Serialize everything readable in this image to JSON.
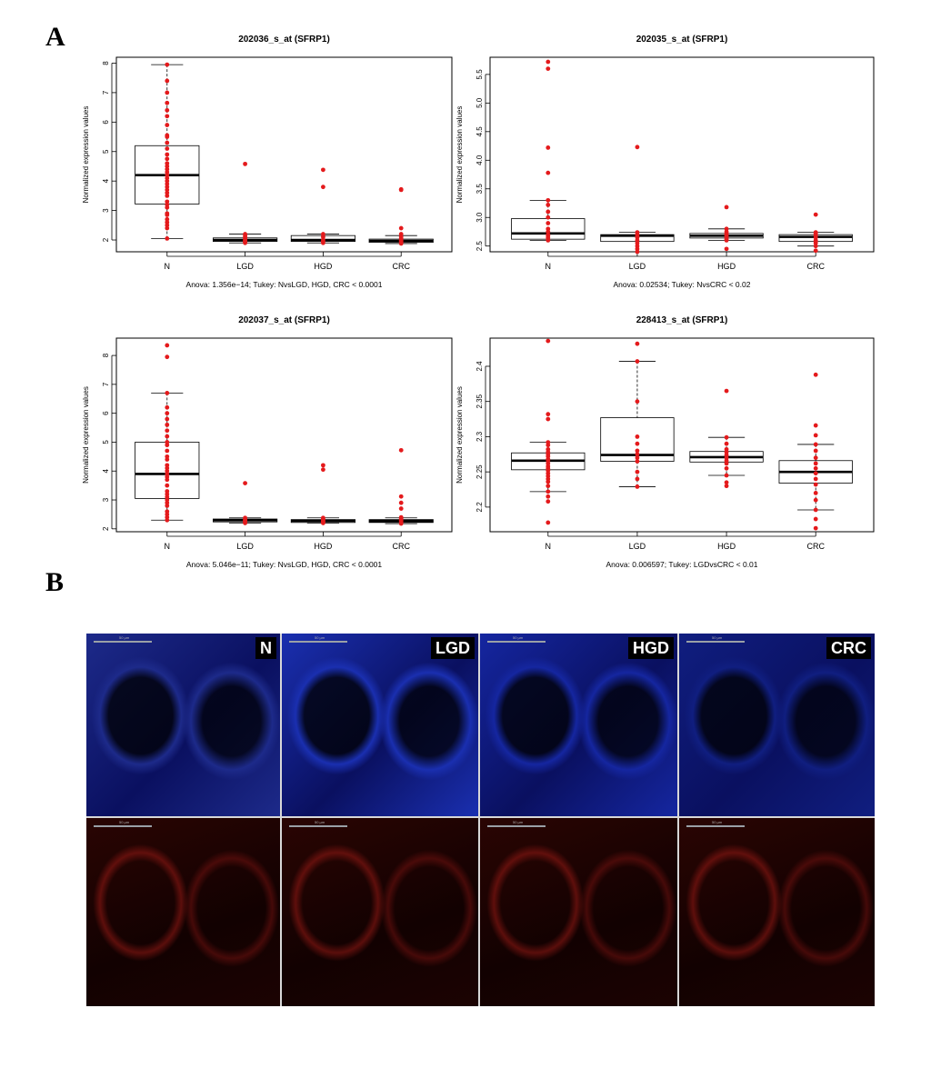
{
  "figure": {
    "panel_a_label": "A",
    "panel_b_label": "B"
  },
  "chart_data": [
    {
      "type": "box",
      "title": "202036_s_at (SFRP1)",
      "ylabel": "Normalized expression values",
      "xlabel": "",
      "caption": "Anova: 1.356e−14; Tukey: NvsLGD, HGD, CRC < 0.0001",
      "categories": [
        "N",
        "LGD",
        "HGD",
        "CRC"
      ],
      "ylim": [
        1.6,
        8.2
      ],
      "yticks": [
        2,
        3,
        4,
        5,
        6,
        7,
        8
      ],
      "grid": false,
      "boxes": [
        {
          "category": "N",
          "whisker_low": 2.05,
          "q1": 3.22,
          "median": 4.2,
          "q3": 5.2,
          "whisker_high": 7.95
        },
        {
          "category": "LGD",
          "whisker_low": 1.9,
          "q1": 1.95,
          "median": 2.0,
          "q3": 2.07,
          "whisker_high": 2.2
        },
        {
          "category": "HGD",
          "whisker_low": 1.9,
          "q1": 1.95,
          "median": 2.0,
          "q3": 2.15,
          "whisker_high": 2.2
        },
        {
          "category": "CRC",
          "whisker_low": 1.88,
          "q1": 1.92,
          "median": 1.97,
          "q3": 2.03,
          "whisker_high": 2.15
        }
      ],
      "points": {
        "N": [
          7.95,
          7.4,
          7.0,
          6.65,
          6.4,
          6.2,
          5.9,
          5.55,
          5.5,
          5.3,
          5.1,
          4.9,
          4.75,
          4.6,
          4.5,
          4.4,
          4.3,
          4.2,
          4.1,
          4.0,
          3.9,
          3.8,
          3.7,
          3.6,
          3.5,
          3.3,
          3.2,
          3.1,
          2.9,
          2.85,
          2.7,
          2.6,
          2.5,
          2.4,
          2.05
        ],
        "LGD": [
          4.58,
          2.2,
          2.15,
          2.1,
          2.05,
          2.0,
          1.98,
          1.95,
          1.92,
          1.9
        ],
        "HGD": [
          4.38,
          3.8,
          2.2,
          2.1,
          2.0,
          1.95,
          1.9
        ],
        "CRC": [
          3.72,
          3.7,
          2.4,
          2.2,
          2.1,
          2.05,
          2.0,
          1.98,
          1.95,
          1.92,
          1.9,
          1.88
        ]
      }
    },
    {
      "type": "box",
      "title": "202035_s_at (SFRP1)",
      "ylabel": "Normalized expression values",
      "xlabel": "",
      "caption": "Anova: 0.02534; Tukey: NvsCRC < 0.02",
      "categories": [
        "N",
        "LGD",
        "HGD",
        "CRC"
      ],
      "ylim": [
        2.4,
        5.8
      ],
      "yticks": [
        2.5,
        3.0,
        3.5,
        4.0,
        4.5,
        5.0,
        5.5
      ],
      "grid": false,
      "boxes": [
        {
          "category": "N",
          "whisker_low": 2.6,
          "q1": 2.62,
          "median": 2.72,
          "q3": 2.98,
          "whisker_high": 3.3
        },
        {
          "category": "LGD",
          "whisker_low": 2.4,
          "q1": 2.58,
          "median": 2.68,
          "q3": 2.7,
          "whisker_high": 2.74
        },
        {
          "category": "HGD",
          "whisker_low": 2.6,
          "q1": 2.64,
          "median": 2.68,
          "q3": 2.72,
          "whisker_high": 2.8
        },
        {
          "category": "CRC",
          "whisker_low": 2.5,
          "q1": 2.58,
          "median": 2.66,
          "q3": 2.7,
          "whisker_high": 2.74
        }
      ],
      "points": {
        "N": [
          5.72,
          5.6,
          4.22,
          3.78,
          3.3,
          3.22,
          3.1,
          3.0,
          2.9,
          2.8,
          2.75,
          2.7,
          2.68,
          2.65,
          2.62,
          2.6
        ],
        "LGD": [
          4.23,
          2.74,
          2.7,
          2.68,
          2.65,
          2.6,
          2.55,
          2.5,
          2.45,
          2.4
        ],
        "HGD": [
          3.18,
          2.8,
          2.75,
          2.72,
          2.7,
          2.68,
          2.65,
          2.62,
          2.6,
          2.45
        ],
        "CRC": [
          3.05,
          2.74,
          2.72,
          2.7,
          2.68,
          2.65,
          2.6,
          2.58,
          2.55,
          2.5,
          2.42
        ]
      }
    },
    {
      "type": "box",
      "title": "202037_s_at (SFRP1)",
      "ylabel": "Normalized expression values",
      "xlabel": "",
      "caption": "Anova: 5.046e−11; Tukey: NvsLGD, HGD, CRC < 0.0001",
      "categories": [
        "N",
        "LGD",
        "HGD",
        "CRC"
      ],
      "ylim": [
        1.9,
        8.6
      ],
      "yticks": [
        2,
        3,
        4,
        5,
        6,
        7,
        8
      ],
      "grid": false,
      "boxes": [
        {
          "category": "N",
          "whisker_low": 2.3,
          "q1": 3.05,
          "median": 3.9,
          "q3": 5.0,
          "whisker_high": 6.7
        },
        {
          "category": "LGD",
          "whisker_low": 2.2,
          "q1": 2.24,
          "median": 2.3,
          "q3": 2.34,
          "whisker_high": 2.38
        },
        {
          "category": "HGD",
          "whisker_low": 2.2,
          "q1": 2.22,
          "median": 2.28,
          "q3": 2.32,
          "whisker_high": 2.38
        },
        {
          "category": "CRC",
          "whisker_low": 2.18,
          "q1": 2.22,
          "median": 2.27,
          "q3": 2.32,
          "whisker_high": 2.38
        }
      ],
      "points": {
        "N": [
          8.35,
          7.95,
          6.7,
          6.2,
          6.0,
          5.8,
          5.6,
          5.4,
          5.2,
          5.0,
          4.9,
          4.7,
          4.5,
          4.4,
          4.2,
          4.1,
          4.0,
          3.9,
          3.8,
          3.7,
          3.5,
          3.3,
          3.2,
          3.1,
          3.0,
          2.9,
          2.8,
          2.6,
          2.5,
          2.4,
          2.3
        ],
        "LGD": [
          3.58,
          2.38,
          2.34,
          2.3,
          2.28,
          2.25,
          2.22,
          2.2
        ],
        "HGD": [
          4.2,
          4.05,
          2.38,
          2.34,
          2.3,
          2.28,
          2.25,
          2.22,
          2.2
        ],
        "CRC": [
          4.72,
          3.12,
          2.9,
          2.7,
          2.4,
          2.35,
          2.3,
          2.28,
          2.25,
          2.22,
          2.18
        ]
      }
    },
    {
      "type": "box",
      "title": "228413_s_at (SFRP1)",
      "ylabel": "Normalized expression values",
      "xlabel": "",
      "caption": "Anova: 0.006597; Tukey: LGDvsCRC < 0.01",
      "categories": [
        "N",
        "LGD",
        "HGD",
        "CRC"
      ],
      "ylim": [
        2.165,
        2.44
      ],
      "yticks": [
        2.2,
        2.25,
        2.3,
        2.35,
        2.4
      ],
      "grid": false,
      "boxes": [
        {
          "category": "N",
          "whisker_low": 2.222,
          "q1": 2.253,
          "median": 2.266,
          "q3": 2.277,
          "whisker_high": 2.292
        },
        {
          "category": "LGD",
          "whisker_low": 2.229,
          "q1": 2.265,
          "median": 2.274,
          "q3": 2.327,
          "whisker_high": 2.407
        },
        {
          "category": "HGD",
          "whisker_low": 2.245,
          "q1": 2.264,
          "median": 2.271,
          "q3": 2.279,
          "whisker_high": 2.299
        },
        {
          "category": "CRC",
          "whisker_low": 2.196,
          "q1": 2.234,
          "median": 2.25,
          "q3": 2.266,
          "whisker_high": 2.289
        }
      ],
      "points": {
        "N": [
          2.436,
          2.332,
          2.325,
          2.292,
          2.288,
          2.282,
          2.278,
          2.275,
          2.272,
          2.268,
          2.266,
          2.262,
          2.258,
          2.255,
          2.252,
          2.248,
          2.244,
          2.24,
          2.236,
          2.23,
          2.222,
          2.215,
          2.208,
          2.178
        ],
        "LGD": [
          2.432,
          2.407,
          2.35,
          2.3,
          2.29,
          2.28,
          2.275,
          2.27,
          2.265,
          2.25,
          2.24,
          2.229
        ],
        "HGD": [
          2.365,
          2.299,
          2.29,
          2.282,
          2.278,
          2.274,
          2.27,
          2.266,
          2.262,
          2.255,
          2.245,
          2.235,
          2.23
        ],
        "CRC": [
          2.388,
          2.316,
          2.302,
          2.289,
          2.28,
          2.27,
          2.262,
          2.255,
          2.248,
          2.24,
          2.232,
          2.22,
          2.21,
          2.196,
          2.183,
          2.17
        ]
      }
    }
  ],
  "micrographs": {
    "scale_label": "50 µm",
    "columns": [
      {
        "label": "N",
        "merge_color": "#1d2a8a"
      },
      {
        "label": "LGD",
        "merge_color": "#1a2fb0"
      },
      {
        "label": "HGD",
        "merge_color": "#1526a0"
      },
      {
        "label": "CRC",
        "merge_color": "#101e80"
      }
    ],
    "signal_color": "#c0281e"
  }
}
